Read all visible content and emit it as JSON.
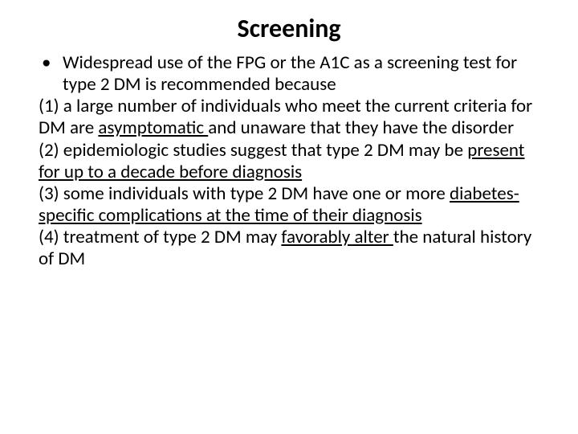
{
  "title": "Screening",
  "bullet": {
    "dot": "•",
    "text": "Widespread use of the FPG or the A1C as a screening test for type 2 DM is recommended because"
  },
  "items": [
    {
      "prefix": "(1) a large number of individuals who meet the current criteria for DM are ",
      "underlined": "asymptomatic ",
      "suffix": "and unaware that they have the disorder"
    },
    {
      "prefix": "(2) epidemiologic studies suggest that type 2 DM may be ",
      "underlined": "present for up to a decade before diagnosis",
      "suffix": ""
    },
    {
      "prefix": "(3) some individuals with type 2 DM have one or more ",
      "underlined": "diabetes-specific complications at the time of their diagnosis",
      "suffix": ""
    },
    {
      "prefix": "(4) treatment of type 2 DM may ",
      "underlined": "favorably alter ",
      "suffix": "the natural history of DM"
    }
  ],
  "style": {
    "background": "#ffffff",
    "text_color": "#000000",
    "title_fontsize": 32,
    "body_fontsize": 23,
    "font_family": "Calibri"
  }
}
